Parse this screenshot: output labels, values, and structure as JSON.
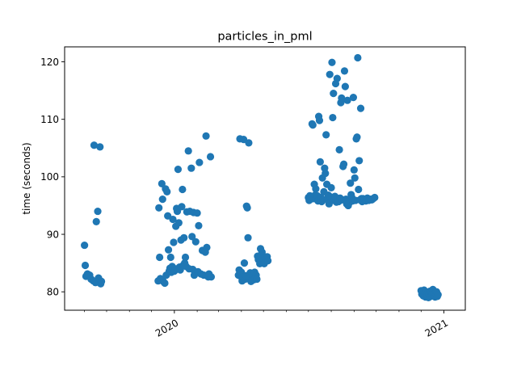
{
  "chart_data": {
    "type": "scatter",
    "title": "particles_in_pml",
    "xlabel": "",
    "ylabel": "time (seconds)",
    "x_axis_type": "date",
    "xlim": [
      "2019-08-05",
      "2021-01-30"
    ],
    "ylim": [
      76.8,
      122.6
    ],
    "x_major_ticks": [
      {
        "date": "2020-01-01",
        "label": "2020"
      },
      {
        "date": "2021-01-01",
        "label": "2021"
      }
    ],
    "x_minor_ticks": [
      "2019-09-01",
      "2019-10-01",
      "2019-11-01",
      "2019-12-01",
      "2020-02-01",
      "2020-03-01",
      "2020-04-01",
      "2020-05-01",
      "2020-06-01",
      "2020-07-01",
      "2020-08-01",
      "2020-09-01",
      "2020-10-01",
      "2020-11-01",
      "2020-12-01"
    ],
    "y_ticks": [
      80,
      90,
      100,
      110,
      120
    ],
    "grid": false,
    "legend": "none",
    "marker_color": "#1f77b4",
    "series": [
      {
        "points": [
          [
            "2019-09-01",
            88.1
          ],
          [
            "2019-09-02",
            84.6
          ],
          [
            "2019-09-03",
            82.7
          ],
          [
            "2019-09-05",
            83.1
          ],
          [
            "2019-09-08",
            82.9
          ],
          [
            "2019-09-10",
            82.2
          ],
          [
            "2019-09-13",
            81.9
          ],
          [
            "2019-09-14",
            105.5
          ],
          [
            "2019-09-16",
            81.6
          ],
          [
            "2019-09-17",
            92.2
          ],
          [
            "2019-09-19",
            94.0
          ],
          [
            "2019-09-20",
            82.4
          ],
          [
            "2019-09-22",
            105.2
          ],
          [
            "2019-09-23",
            81.4
          ],
          [
            "2019-09-24",
            81.8
          ],
          [
            "2019-12-10",
            81.9
          ],
          [
            "2019-12-11",
            94.6
          ],
          [
            "2019-12-12",
            86.0
          ],
          [
            "2019-12-13",
            82.3
          ],
          [
            "2019-12-15",
            98.8
          ],
          [
            "2019-12-16",
            96.1
          ],
          [
            "2019-12-17",
            81.8
          ],
          [
            "2019-12-19",
            81.5
          ],
          [
            "2019-12-20",
            97.9
          ],
          [
            "2019-12-21",
            82.9
          ],
          [
            "2019-12-22",
            97.4
          ],
          [
            "2019-12-23",
            93.2
          ],
          [
            "2019-12-24",
            87.3
          ],
          [
            "2019-12-25",
            83.6
          ],
          [
            "2019-12-26",
            84.1
          ],
          [
            "2019-12-27",
            86.0
          ],
          [
            "2019-12-28",
            83.4
          ],
          [
            "2019-12-29",
            84.4
          ],
          [
            "2019-12-30",
            92.6
          ],
          [
            "2019-12-31",
            88.6
          ],
          [
            "2020-01-01",
            83.6
          ],
          [
            "2020-01-02",
            84.0
          ],
          [
            "2020-01-03",
            91.4
          ],
          [
            "2020-01-04",
            94.5
          ],
          [
            "2020-01-05",
            94.0
          ],
          [
            "2020-01-06",
            101.3
          ],
          [
            "2020-01-07",
            92.0
          ],
          [
            "2020-01-08",
            84.3
          ],
          [
            "2020-01-09",
            83.8
          ],
          [
            "2020-01-10",
            89.0
          ],
          [
            "2020-01-11",
            94.8
          ],
          [
            "2020-01-12",
            97.8
          ],
          [
            "2020-01-13",
            84.6
          ],
          [
            "2020-01-14",
            89.4
          ],
          [
            "2020-01-15",
            85.0
          ],
          [
            "2020-01-16",
            86.0
          ],
          [
            "2020-01-17",
            84.4
          ],
          [
            "2020-01-18",
            93.9
          ],
          [
            "2020-01-20",
            104.5
          ],
          [
            "2020-01-21",
            84.0
          ],
          [
            "2020-01-22",
            94.0
          ],
          [
            "2020-01-24",
            101.5
          ],
          [
            "2020-01-25",
            89.6
          ],
          [
            "2020-01-26",
            83.9
          ],
          [
            "2020-01-27",
            93.8
          ],
          [
            "2020-01-28",
            82.9
          ],
          [
            "2020-01-30",
            88.7
          ],
          [
            "2020-02-01",
            93.7
          ],
          [
            "2020-02-02",
            83.5
          ],
          [
            "2020-02-03",
            91.5
          ],
          [
            "2020-02-04",
            102.5
          ],
          [
            "2020-02-06",
            83.1
          ],
          [
            "2020-02-08",
            87.2
          ],
          [
            "2020-02-10",
            82.9
          ],
          [
            "2020-02-12",
            86.9
          ],
          [
            "2020-02-13",
            107.1
          ],
          [
            "2020-02-14",
            87.7
          ],
          [
            "2020-02-16",
            82.6
          ],
          [
            "2020-02-17",
            83.1
          ],
          [
            "2020-02-19",
            103.5
          ],
          [
            "2020-02-20",
            82.6
          ],
          [
            "2020-03-28",
            82.9
          ],
          [
            "2020-03-29",
            83.8
          ],
          [
            "2020-03-30",
            106.6
          ],
          [
            "2020-03-31",
            82.7
          ],
          [
            "2020-04-01",
            83.4
          ],
          [
            "2020-04-02",
            81.9
          ],
          [
            "2020-04-03",
            82.6
          ],
          [
            "2020-04-04",
            106.5
          ],
          [
            "2020-04-05",
            85.0
          ],
          [
            "2020-04-06",
            82.2
          ],
          [
            "2020-04-07",
            82.8
          ],
          [
            "2020-04-08",
            94.9
          ],
          [
            "2020-04-09",
            94.6
          ],
          [
            "2020-04-10",
            89.4
          ],
          [
            "2020-04-11",
            105.9
          ],
          [
            "2020-04-12",
            82.5
          ],
          [
            "2020-04-13",
            83.3
          ],
          [
            "2020-04-14",
            81.8
          ],
          [
            "2020-04-15",
            83.2
          ],
          [
            "2020-04-16",
            82.2
          ],
          [
            "2020-04-17",
            82.9
          ],
          [
            "2020-04-18",
            82.1
          ],
          [
            "2020-04-19",
            83.4
          ],
          [
            "2020-04-20",
            82.4
          ],
          [
            "2020-04-21",
            82.9
          ],
          [
            "2020-04-22",
            82.2
          ],
          [
            "2020-04-23",
            86.2
          ],
          [
            "2020-04-24",
            85.6
          ],
          [
            "2020-04-25",
            86.0
          ],
          [
            "2020-04-26",
            84.9
          ],
          [
            "2020-04-27",
            87.5
          ],
          [
            "2020-04-28",
            85.3
          ],
          [
            "2020-04-29",
            86.9
          ],
          [
            "2020-04-30",
            85.8
          ],
          [
            "2020-05-01",
            86.2
          ],
          [
            "2020-05-02",
            84.9
          ],
          [
            "2020-05-03",
            86.0
          ],
          [
            "2020-05-04",
            85.5
          ],
          [
            "2020-05-05",
            85.7
          ],
          [
            "2020-05-06",
            86.1
          ],
          [
            "2020-05-07",
            85.4
          ],
          [
            "2020-07-01",
            96.4
          ],
          [
            "2020-07-02",
            95.9
          ],
          [
            "2020-07-03",
            96.7
          ],
          [
            "2020-07-04",
            96.1
          ],
          [
            "2020-07-05",
            96.5
          ],
          [
            "2020-07-06",
            109.2
          ],
          [
            "2020-07-07",
            109.0
          ],
          [
            "2020-07-08",
            96.2
          ],
          [
            "2020-07-09",
            98.7
          ],
          [
            "2020-07-10",
            96.8
          ],
          [
            "2020-07-11",
            97.9
          ],
          [
            "2020-07-12",
            96.3
          ],
          [
            "2020-07-13",
            96.7
          ],
          [
            "2020-07-14",
            95.8
          ],
          [
            "2020-07-15",
            110.5
          ],
          [
            "2020-07-16",
            109.8
          ],
          [
            "2020-07-17",
            102.6
          ],
          [
            "2020-07-18",
            96.4
          ],
          [
            "2020-07-19",
            95.7
          ],
          [
            "2020-07-20",
            99.8
          ],
          [
            "2020-07-21",
            96.0
          ],
          [
            "2020-07-22",
            97.4
          ],
          [
            "2020-07-23",
            101.5
          ],
          [
            "2020-07-24",
            100.6
          ],
          [
            "2020-07-25",
            107.3
          ],
          [
            "2020-07-26",
            98.7
          ],
          [
            "2020-07-27",
            96.3
          ],
          [
            "2020-07-28",
            96.8
          ],
          [
            "2020-07-29",
            95.3
          ],
          [
            "2020-07-30",
            117.8
          ],
          [
            "2020-07-31",
            96.5
          ],
          [
            "2020-08-01",
            98.1
          ],
          [
            "2020-08-02",
            119.9
          ],
          [
            "2020-08-03",
            110.3
          ],
          [
            "2020-08-04",
            114.5
          ],
          [
            "2020-08-05",
            95.9
          ],
          [
            "2020-08-06",
            96.6
          ],
          [
            "2020-08-07",
            116.2
          ],
          [
            "2020-08-08",
            95.6
          ],
          [
            "2020-08-09",
            117.1
          ],
          [
            "2020-08-10",
            96.2
          ],
          [
            "2020-08-11",
            95.7
          ],
          [
            "2020-08-12",
            104.7
          ],
          [
            "2020-08-13",
            96.3
          ],
          [
            "2020-08-14",
            112.9
          ],
          [
            "2020-08-15",
            113.7
          ],
          [
            "2020-08-16",
            96.0
          ],
          [
            "2020-08-17",
            101.8
          ],
          [
            "2020-08-18",
            102.2
          ],
          [
            "2020-08-19",
            118.4
          ],
          [
            "2020-08-20",
            115.7
          ],
          [
            "2020-08-21",
            96.1
          ],
          [
            "2020-08-22",
            95.3
          ],
          [
            "2020-08-23",
            113.3
          ],
          [
            "2020-08-24",
            95.0
          ],
          [
            "2020-08-25",
            95.4
          ],
          [
            "2020-08-26",
            96.0
          ],
          [
            "2020-08-27",
            98.9
          ],
          [
            "2020-08-28",
            96.9
          ],
          [
            "2020-08-29",
            96.4
          ],
          [
            "2020-08-30",
            95.8
          ],
          [
            "2020-08-31",
            113.8
          ],
          [
            "2020-09-01",
            101.2
          ],
          [
            "2020-09-02",
            99.8
          ],
          [
            "2020-09-03",
            95.9
          ],
          [
            "2020-09-04",
            106.6
          ],
          [
            "2020-09-05",
            106.9
          ],
          [
            "2020-09-06",
            120.7
          ],
          [
            "2020-09-07",
            97.8
          ],
          [
            "2020-09-08",
            102.8
          ],
          [
            "2020-09-09",
            96.0
          ],
          [
            "2020-09-10",
            111.9
          ],
          [
            "2020-09-11",
            96.2
          ],
          [
            "2020-09-12",
            95.7
          ],
          [
            "2020-09-13",
            96.2
          ],
          [
            "2020-09-15",
            96.0
          ],
          [
            "2020-09-17",
            95.8
          ],
          [
            "2020-09-19",
            96.3
          ],
          [
            "2020-09-21",
            95.9
          ],
          [
            "2020-09-23",
            96.1
          ],
          [
            "2020-09-25",
            96.0
          ],
          [
            "2020-09-27",
            96.2
          ],
          [
            "2020-09-29",
            96.4
          ],
          [
            "2020-12-01",
            80.2
          ],
          [
            "2020-12-02",
            79.6
          ],
          [
            "2020-12-03",
            80.1
          ],
          [
            "2020-12-04",
            79.3
          ],
          [
            "2020-12-05",
            80.3
          ],
          [
            "2020-12-06",
            79.7
          ],
          [
            "2020-12-07",
            79.1
          ],
          [
            "2020-12-08",
            80.0
          ],
          [
            "2020-12-09",
            79.4
          ],
          [
            "2020-12-10",
            79.8
          ],
          [
            "2020-12-11",
            79.0
          ],
          [
            "2020-12-12",
            79.6
          ],
          [
            "2020-12-13",
            80.1
          ],
          [
            "2020-12-14",
            79.2
          ],
          [
            "2020-12-15",
            79.9
          ],
          [
            "2020-12-16",
            79.5
          ],
          [
            "2020-12-17",
            80.4
          ],
          [
            "2020-12-18",
            79.3
          ],
          [
            "2020-12-19",
            79.7
          ],
          [
            "2020-12-20",
            79.1
          ],
          [
            "2020-12-21",
            79.6
          ],
          [
            "2020-12-22",
            80.0
          ],
          [
            "2020-12-23",
            79.2
          ],
          [
            "2020-12-24",
            79.5
          ]
        ]
      }
    ]
  }
}
